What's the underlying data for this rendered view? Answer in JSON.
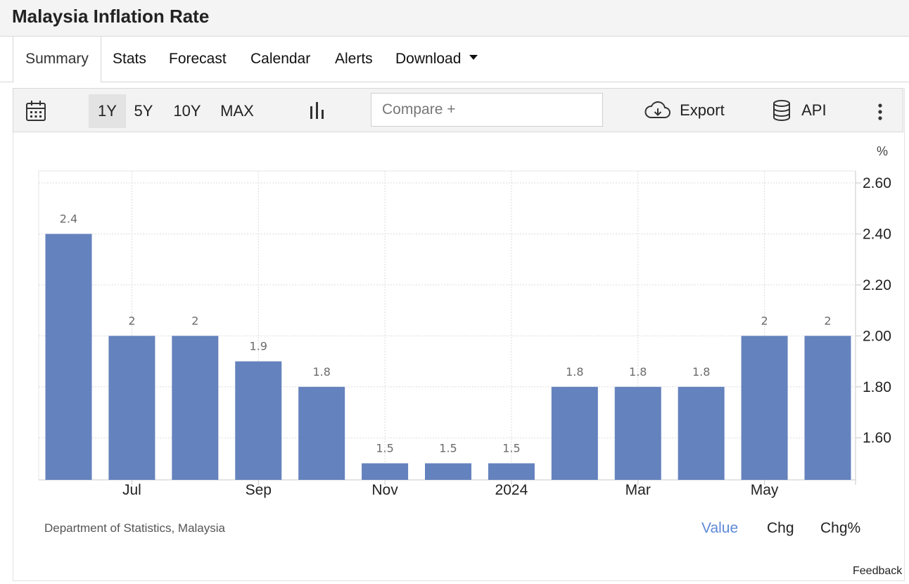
{
  "title": "Malaysia Inflation Rate",
  "tabs": [
    "Summary",
    "Stats",
    "Forecast",
    "Calendar",
    "Alerts",
    "Download"
  ],
  "active_tab": "Summary",
  "toolbar": {
    "calendar_icon": "calendar-icon",
    "ranges": [
      "1Y",
      "5Y",
      "10Y",
      "MAX"
    ],
    "selected_range": "1Y",
    "chart_type_icon": "bar-chart-icon",
    "compare_placeholder": "Compare +",
    "export_label": "Export",
    "export_icon": "cloud-download-icon",
    "api_label": "API",
    "api_icon": "database-icon",
    "more_icon": "kebab-menu-icon"
  },
  "chart_data": {
    "type": "bar",
    "unit": "%",
    "values": [
      2.4,
      2,
      2,
      1.9,
      1.8,
      1.5,
      1.5,
      1.5,
      1.8,
      1.8,
      1.8,
      2,
      2
    ],
    "data_labels": [
      "2.4",
      "2",
      "2",
      "1.9",
      "1.8",
      "1.5",
      "1.5",
      "1.5",
      "1.8",
      "1.8",
      "1.8",
      "2",
      "2"
    ],
    "x_tick_labels": [
      {
        "after_bar": 1,
        "label": "Jul"
      },
      {
        "after_bar": 3,
        "label": "Sep"
      },
      {
        "after_bar": 5,
        "label": "Nov"
      },
      {
        "after_bar": 7,
        "label": "2024"
      },
      {
        "after_bar": 9,
        "label": "Mar"
      },
      {
        "after_bar": 11,
        "label": "May"
      }
    ],
    "y_ticks": [
      "2.60",
      "2.40",
      "2.20",
      "2.00",
      "1.80",
      "1.60"
    ],
    "ylim": [
      1.435,
      2.647
    ],
    "y_axis_side": "right",
    "grid": true,
    "bar_color": "#6482bd"
  },
  "source": "Department of Statistics, Malaysia",
  "view_toggles": [
    "Value",
    "Chg",
    "Chg%"
  ],
  "active_view": "Value",
  "feedback": "Feedback"
}
